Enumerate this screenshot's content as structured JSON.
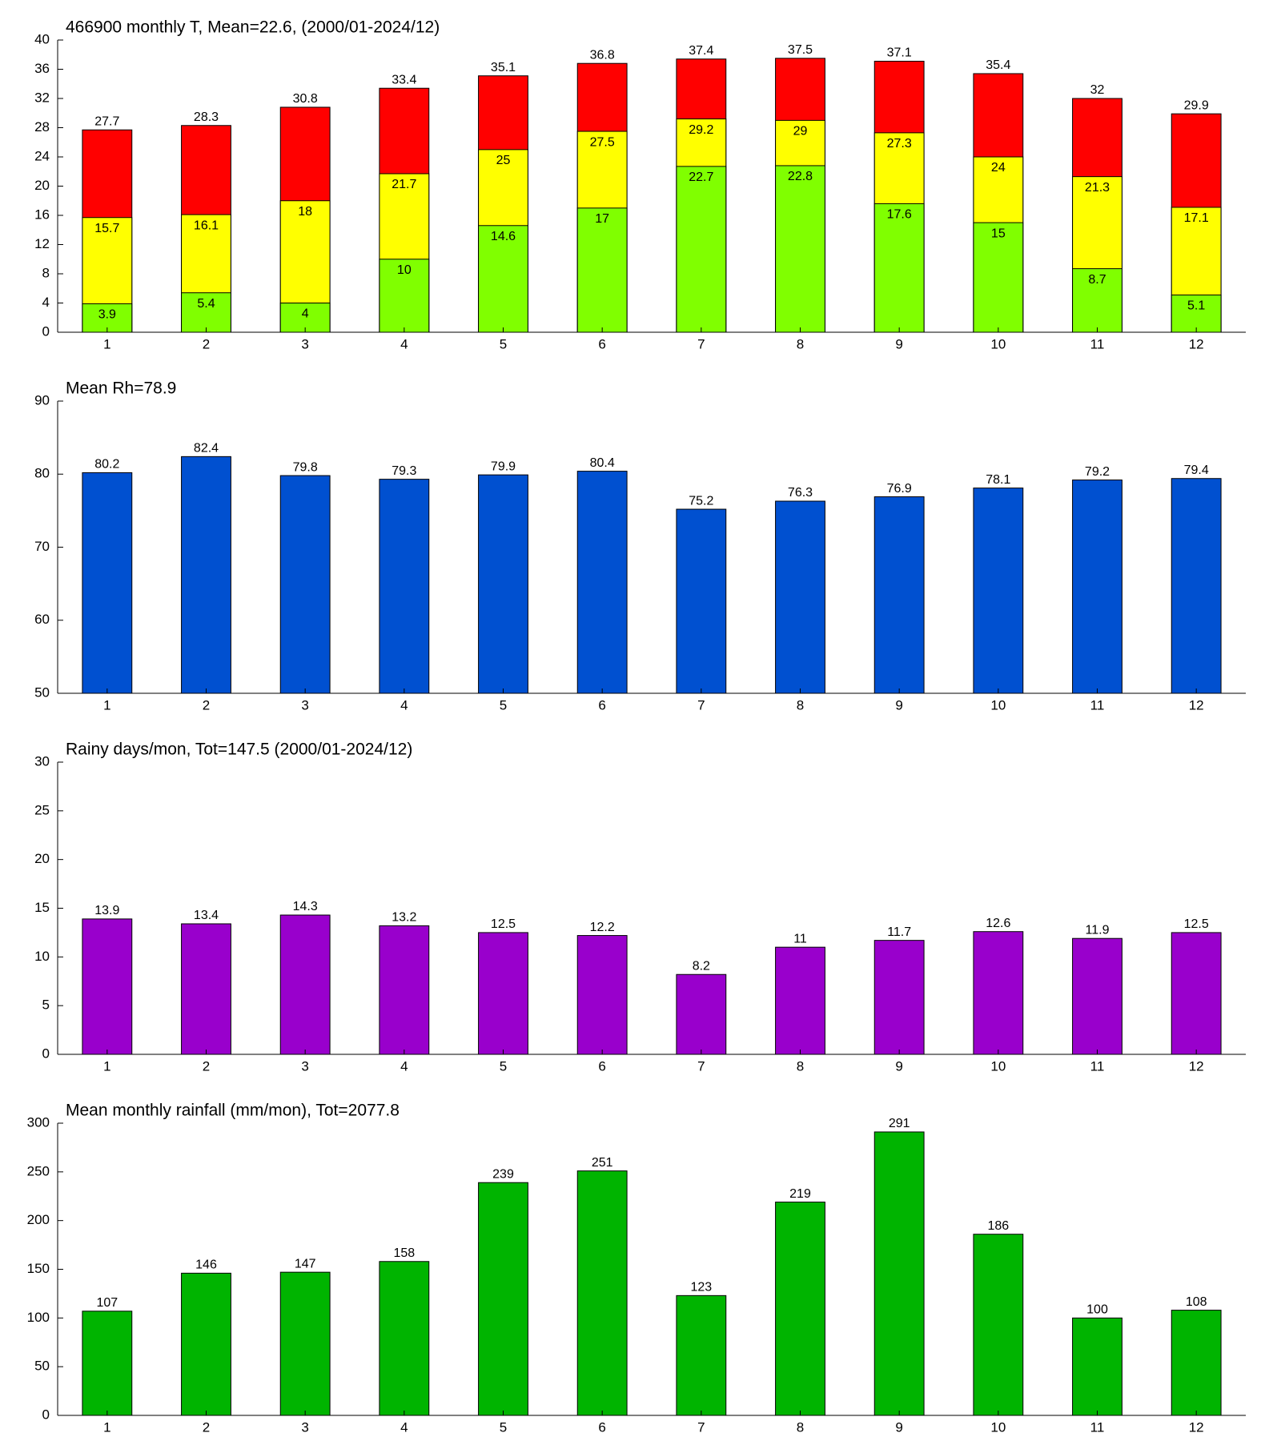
{
  "chart_data": [
    {
      "type": "bar",
      "barmode": "overlay",
      "title": "466900 monthly T, Mean=22.6, (2000/01-2024/12)",
      "categories": [
        1,
        2,
        3,
        4,
        5,
        6,
        7,
        8,
        9,
        10,
        11,
        12
      ],
      "series": [
        {
          "color": "#ff0000",
          "values": [
            27.7,
            28.3,
            30.8,
            33.4,
            35.1,
            36.8,
            37.4,
            37.5,
            37.1,
            35.4,
            32,
            29.9
          ]
        },
        {
          "color": "#ffff00",
          "values": [
            15.7,
            16.1,
            18,
            21.7,
            25,
            27.5,
            29.2,
            29,
            27.3,
            24,
            21.3,
            17.1
          ]
        },
        {
          "color": "#80ff00",
          "values": [
            3.9,
            5.4,
            4,
            10,
            14.6,
            17,
            22.7,
            22.8,
            17.6,
            15,
            8.7,
            5.1
          ]
        }
      ],
      "ylim": [
        0,
        40
      ],
      "yticks": [
        0,
        4,
        8,
        12,
        16,
        20,
        24,
        28,
        32,
        36,
        40
      ]
    },
    {
      "type": "bar",
      "title": "Mean Rh=78.9",
      "categories": [
        1,
        2,
        3,
        4,
        5,
        6,
        7,
        8,
        9,
        10,
        11,
        12
      ],
      "series": [
        {
          "color": "#0050d0",
          "values": [
            80.2,
            82.4,
            79.8,
            79.3,
            79.9,
            80.4,
            75.2,
            76.3,
            76.9,
            78.1,
            79.2,
            79.4
          ]
        }
      ],
      "ylim": [
        50,
        90
      ],
      "yticks": [
        50,
        60,
        70,
        80,
        90
      ]
    },
    {
      "type": "bar",
      "title": "Rainy days/mon, Tot=147.5 (2000/01-2024/12)",
      "categories": [
        1,
        2,
        3,
        4,
        5,
        6,
        7,
        8,
        9,
        10,
        11,
        12
      ],
      "series": [
        {
          "color": "#9900cc",
          "values": [
            13.9,
            13.4,
            14.3,
            13.2,
            12.5,
            12.2,
            8.2,
            11,
            11.7,
            12.6,
            11.9,
            12.5
          ]
        }
      ],
      "ylim": [
        0,
        30
      ],
      "yticks": [
        0,
        5,
        10,
        15,
        20,
        25,
        30
      ]
    },
    {
      "type": "bar",
      "title": "Mean monthly rainfall (mm/mon), Tot=2077.8",
      "categories": [
        1,
        2,
        3,
        4,
        5,
        6,
        7,
        8,
        9,
        10,
        11,
        12
      ],
      "series": [
        {
          "color": "#00b400",
          "values": [
            107,
            146,
            147,
            158,
            239,
            251,
            123,
            219,
            291,
            186,
            100,
            108
          ]
        }
      ],
      "ylim": [
        0,
        300
      ],
      "yticks": [
        0,
        50,
        100,
        150,
        200,
        250,
        300
      ]
    }
  ]
}
